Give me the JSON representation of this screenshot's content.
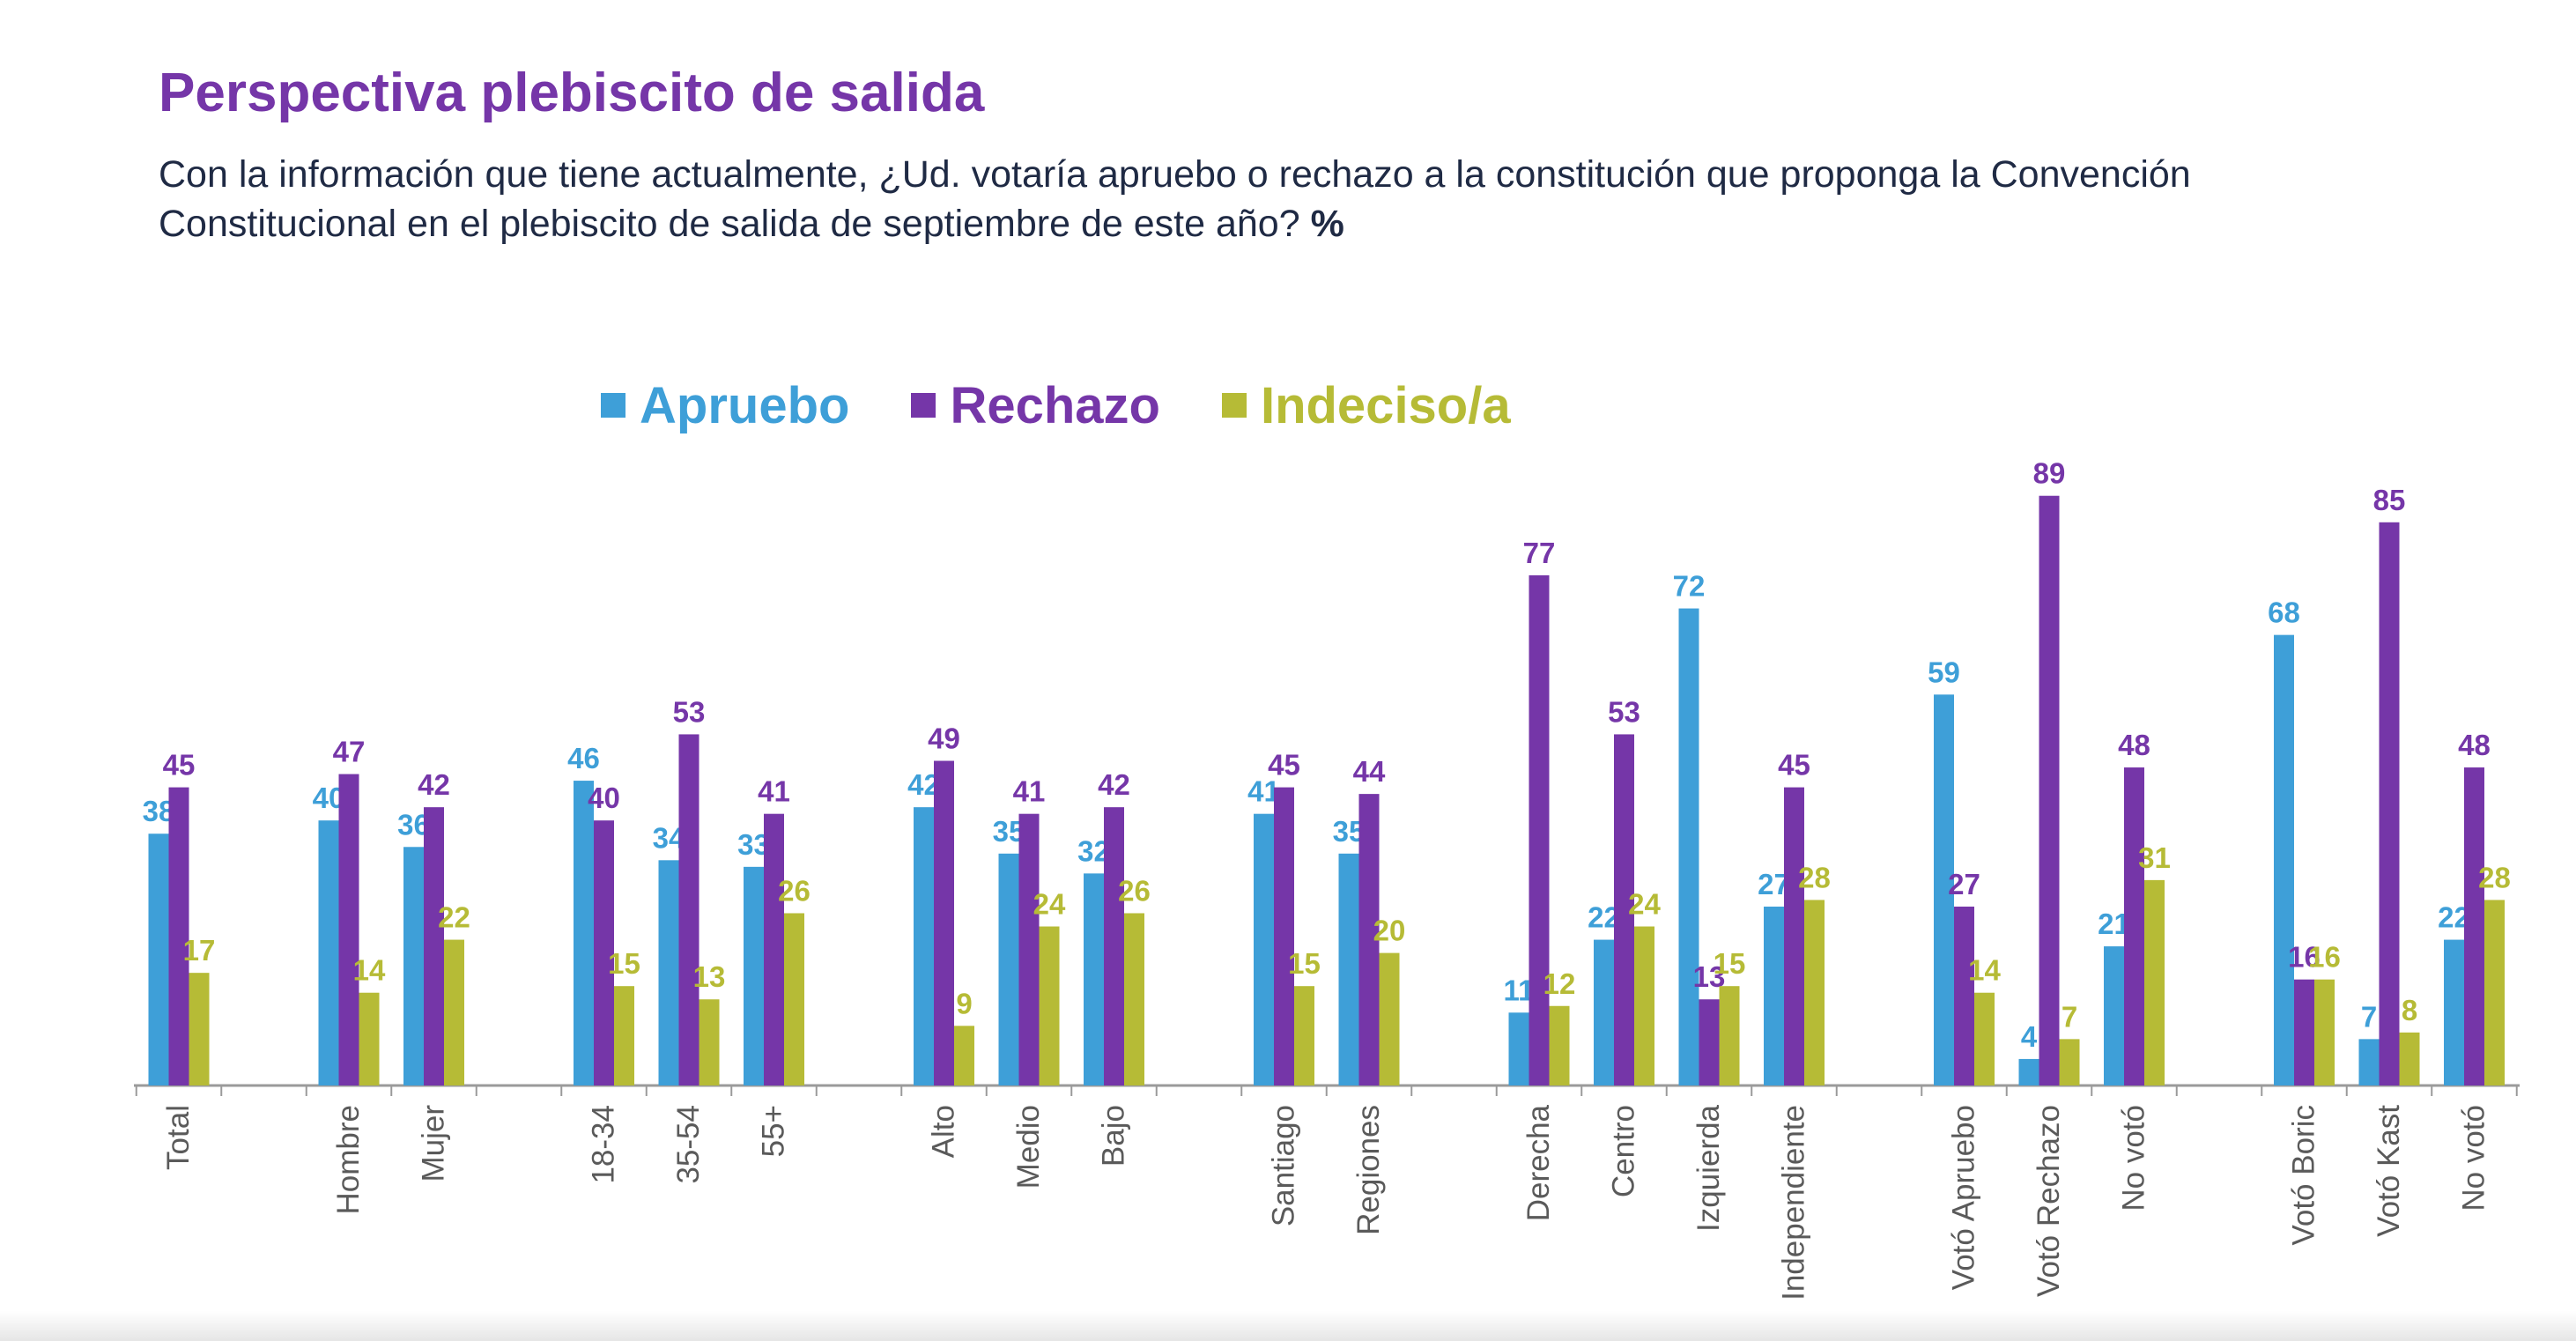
{
  "header": {
    "title": "Perspectiva plebiscito de salida",
    "subtitle": "Con la información que tiene actualmente, ¿Ud. votaría apruebo o rechazo a la constitución que proponga la Convención Constitucional en el plebiscito de salida de septiembre de este año?",
    "subtitle_unit": "%"
  },
  "colors": {
    "apruebo": "#3e9fd8",
    "rechazo": "#7536a8",
    "indeciso": "#b6bb36",
    "axis": "#9a9a9a",
    "tick_text": "#5a5a5a"
  },
  "chart_data": {
    "type": "bar",
    "title": "Perspectiva plebiscito de salida",
    "xlabel": "",
    "ylabel": "%",
    "ylim": [
      0,
      100
    ],
    "grid": false,
    "legend_position": "top-left",
    "groups": [
      [
        "Total"
      ],
      [
        "Hombre",
        "Mujer"
      ],
      [
        "18-34",
        "35-54",
        "55+"
      ],
      [
        "Alto",
        "Medio",
        "Bajo"
      ],
      [
        "Santiago",
        "Regiones"
      ],
      [
        "Derecha",
        "Centro",
        "Izquierda",
        "Independiente"
      ],
      [
        "Votó Apruebo",
        "Votó Rechazo",
        "No votó"
      ],
      [
        "Votó Boric",
        "Votó Kast",
        "No votó"
      ]
    ],
    "categories": [
      "Total",
      "Hombre",
      "Mujer",
      "18-34",
      "35-54",
      "55+",
      "Alto",
      "Medio",
      "Bajo",
      "Santiago",
      "Regiones",
      "Derecha",
      "Centro",
      "Izquierda",
      "Independiente",
      "Votó Apruebo",
      "Votó Rechazo",
      "No votó",
      "Votó Boric",
      "Votó Kast",
      "No votó"
    ],
    "series": [
      {
        "name": "Apruebo",
        "values": [
          38,
          40,
          36,
          46,
          34,
          33,
          42,
          35,
          32,
          41,
          35,
          11,
          22,
          72,
          27,
          59,
          4,
          21,
          68,
          7,
          22
        ]
      },
      {
        "name": "Rechazo",
        "values": [
          45,
          47,
          42,
          40,
          53,
          41,
          49,
          41,
          42,
          45,
          44,
          77,
          53,
          13,
          45,
          27,
          89,
          48,
          16,
          85,
          48
        ]
      },
      {
        "name": "Indeciso/a",
        "values": [
          17,
          14,
          22,
          15,
          13,
          26,
          9,
          24,
          26,
          15,
          20,
          12,
          24,
          15,
          28,
          14,
          7,
          31,
          16,
          8,
          28
        ]
      }
    ]
  }
}
